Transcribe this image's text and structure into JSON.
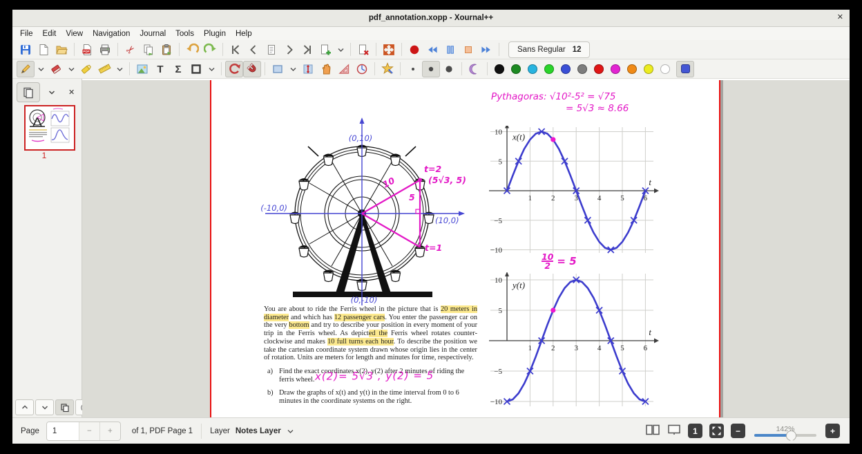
{
  "window": {
    "title": "pdf_annotation.xopp - Xournal++",
    "close_glyph": "✕"
  },
  "menu": {
    "items": [
      "File",
      "Edit",
      "View",
      "Navigation",
      "Journal",
      "Tools",
      "Plugin",
      "Help"
    ]
  },
  "toolbar1": {
    "icons": [
      "save",
      "new-file",
      "open",
      "export-pdf",
      "print",
      "cut",
      "copy",
      "paste",
      "undo",
      "redo",
      "first-page",
      "previous-page",
      "goto-page",
      "next-page",
      "last-page",
      "add-page",
      "add-page-dropdown",
      "delete-page",
      "fullscreen",
      "record-audio",
      "rewind",
      "pause",
      "stop",
      "forward"
    ],
    "font_name": "Sans Regular",
    "font_size": "12"
  },
  "toolbar2": {
    "icons": [
      "pen",
      "pen-dropdown",
      "eraser",
      "eraser-dropdown",
      "highlighter",
      "ruler",
      "ruler-dropdown",
      "insert-image",
      "text-tool",
      "tex-tool",
      "shape-tool",
      "shape-dropdown",
      "rotation-snap",
      "grid-snap",
      "select-rect",
      "select-dropdown",
      "vertical-space",
      "hand-tool",
      "setsquare",
      "compass",
      "shape-recognizer",
      "thickness-fine",
      "thickness-medium",
      "thickness-thick",
      "moon",
      "color-picker"
    ],
    "colors": [
      "#111111",
      "#1d8a22",
      "#28b4e0",
      "#2ad42a",
      "#3a4fd6",
      "#7d7d7d",
      "#e01616",
      "#e224d2",
      "#f08a16",
      "#ecec20",
      "#ffffff"
    ],
    "picker_color": "#4456d4",
    "accent_pressed": "#dcdcd6"
  },
  "sidebar": {
    "page_number": "1"
  },
  "page": {
    "pythagoras_line1": "Pythagoras: √10²-5² = √75",
    "pythagoras_line2": "= 5√3 ≈ 8.66",
    "wheel_labels": {
      "top": "(0,10)",
      "left": "(-10,0)",
      "right": "(10,0)",
      "bottom": "(0,-10)",
      "t2": "t=2",
      "coord": "(5√3, 5)",
      "radius": "10",
      "half": "5",
      "t1": "t=1"
    },
    "paragraph": {
      "segments": [
        {
          "t": "You are about to ride the Ferris wheel in the picture that is ",
          "h": false
        },
        {
          "t": "20 meters in diameter",
          "h": true
        },
        {
          "t": " and which has ",
          "h": false
        },
        {
          "t": "12 passenger cars",
          "h": true
        },
        {
          "t": ". You enter the passenger car on the very ",
          "h": false
        },
        {
          "t": "bottom",
          "h": true
        },
        {
          "t": " and try to describe your position in every moment of your trip in the Ferris wheel. As depict",
          "h": false
        },
        {
          "t": "ed the",
          "h": true
        },
        {
          "t": " Ferris wheel rotates counter-clockwise and makes ",
          "h": false
        },
        {
          "t": "10 full turns each hour",
          "h": true
        },
        {
          "t": ". To describe the position we take the cartesian coordinate system drawn whose origin lies in the center of rotation. Units are meters for length and minutes for time, respectively.",
          "h": false
        }
      ]
    },
    "item_a_label": "a)",
    "item_a_text": "Find the exact coordinates x(2), y(2) after 2 minutes of riding the ferris wheel.",
    "item_a_handwriting": "x(2)= 5√3 , y(2) = 5",
    "item_b_label": "b)",
    "item_b_text": "Draw the graphs of x(t) and y(t) in the time interval from 0 to 6 minutes in the coordinate systems on the right.",
    "fraction_note": {
      "numerator": "10",
      "denominator": "2",
      "rhs": "= 5"
    }
  },
  "chart_data": [
    {
      "type": "line",
      "title": "x(t)",
      "xlabel": "t",
      "ylabel": "x(t)",
      "xlim": [
        0,
        6.5
      ],
      "ylim": [
        -10,
        10
      ],
      "x_ticks": [
        1,
        2,
        3,
        4,
        5,
        6
      ],
      "y_ticks": [
        10,
        5,
        -5,
        -10
      ],
      "color": "#3c3ccd",
      "dot_color": "#ee17cf",
      "grid": true,
      "legend": "none",
      "points": [
        [
          0,
          0
        ],
        [
          0.25,
          2.588
        ],
        [
          0.5,
          5
        ],
        [
          0.75,
          7.071
        ],
        [
          1,
          8.66
        ],
        [
          1.25,
          9.659
        ],
        [
          1.5,
          10
        ],
        [
          1.75,
          9.659
        ],
        [
          2,
          8.66
        ],
        [
          2.25,
          7.071
        ],
        [
          2.5,
          5
        ],
        [
          2.75,
          2.588
        ],
        [
          3,
          0
        ],
        [
          3.25,
          -2.588
        ],
        [
          3.5,
          -5
        ],
        [
          3.75,
          -7.071
        ],
        [
          4,
          -8.66
        ],
        [
          4.25,
          -9.659
        ],
        [
          4.5,
          -10
        ],
        [
          4.75,
          -9.659
        ],
        [
          5,
          -8.66
        ],
        [
          5.25,
          -7.071
        ],
        [
          5.5,
          -5
        ],
        [
          5.75,
          -2.588
        ],
        [
          6,
          0
        ]
      ],
      "marks": [
        [
          0,
          0
        ],
        [
          0.5,
          5
        ],
        [
          1.5,
          10
        ],
        [
          2.5,
          5
        ],
        [
          3,
          0
        ],
        [
          3.5,
          -5
        ],
        [
          4.5,
          -10
        ],
        [
          5.5,
          -5
        ],
        [
          6,
          0
        ]
      ],
      "highlight_dot": [
        2,
        8.66
      ]
    },
    {
      "type": "line",
      "title": "y(t)",
      "xlabel": "t",
      "ylabel": "y(t)",
      "xlim": [
        0,
        6.5
      ],
      "ylim": [
        -10,
        10
      ],
      "x_ticks": [
        1,
        2,
        3,
        4,
        5,
        6
      ],
      "y_ticks": [
        10,
        5,
        -5,
        -10
      ],
      "color": "#3c3ccd",
      "dot_color": "#ee17cf",
      "grid": true,
      "legend": "none",
      "points": [
        [
          0,
          -10
        ],
        [
          0.25,
          -9.659
        ],
        [
          0.5,
          -8.66
        ],
        [
          0.75,
          -7.071
        ],
        [
          1,
          -5
        ],
        [
          1.25,
          -2.588
        ],
        [
          1.5,
          0
        ],
        [
          1.75,
          2.588
        ],
        [
          2,
          5
        ],
        [
          2.25,
          7.071
        ],
        [
          2.5,
          8.66
        ],
        [
          2.75,
          9.659
        ],
        [
          3,
          10
        ],
        [
          3.25,
          9.659
        ],
        [
          3.5,
          8.66
        ],
        [
          3.75,
          7.071
        ],
        [
          4,
          5
        ],
        [
          4.25,
          2.588
        ],
        [
          4.5,
          0
        ],
        [
          4.75,
          -2.588
        ],
        [
          5,
          -5
        ],
        [
          5.25,
          -7.071
        ],
        [
          5.5,
          -8.66
        ],
        [
          5.75,
          -9.659
        ],
        [
          6,
          -10
        ]
      ],
      "marks": [
        [
          0,
          -10
        ],
        [
          1,
          -5
        ],
        [
          1.5,
          0
        ],
        [
          3,
          10
        ],
        [
          4,
          5
        ],
        [
          4.5,
          0
        ],
        [
          5,
          -5
        ],
        [
          6,
          -10
        ]
      ],
      "highlight_dot": [
        2,
        5
      ]
    }
  ],
  "statusbar": {
    "page_label": "Page",
    "page_value": "1",
    "minus": "−",
    "plus": "+",
    "of_label": "of 1, PDF Page 1",
    "layer_label": "Layer",
    "layer_value": "Notes Layer",
    "zoom_label": "142%",
    "zoom_100": "1",
    "zoom_out": "−",
    "zoom_in": "+",
    "icons": [
      "dual-page",
      "presentation",
      "zoom-100",
      "zoom-fit",
      "zoom-out",
      "zoom-in"
    ]
  }
}
